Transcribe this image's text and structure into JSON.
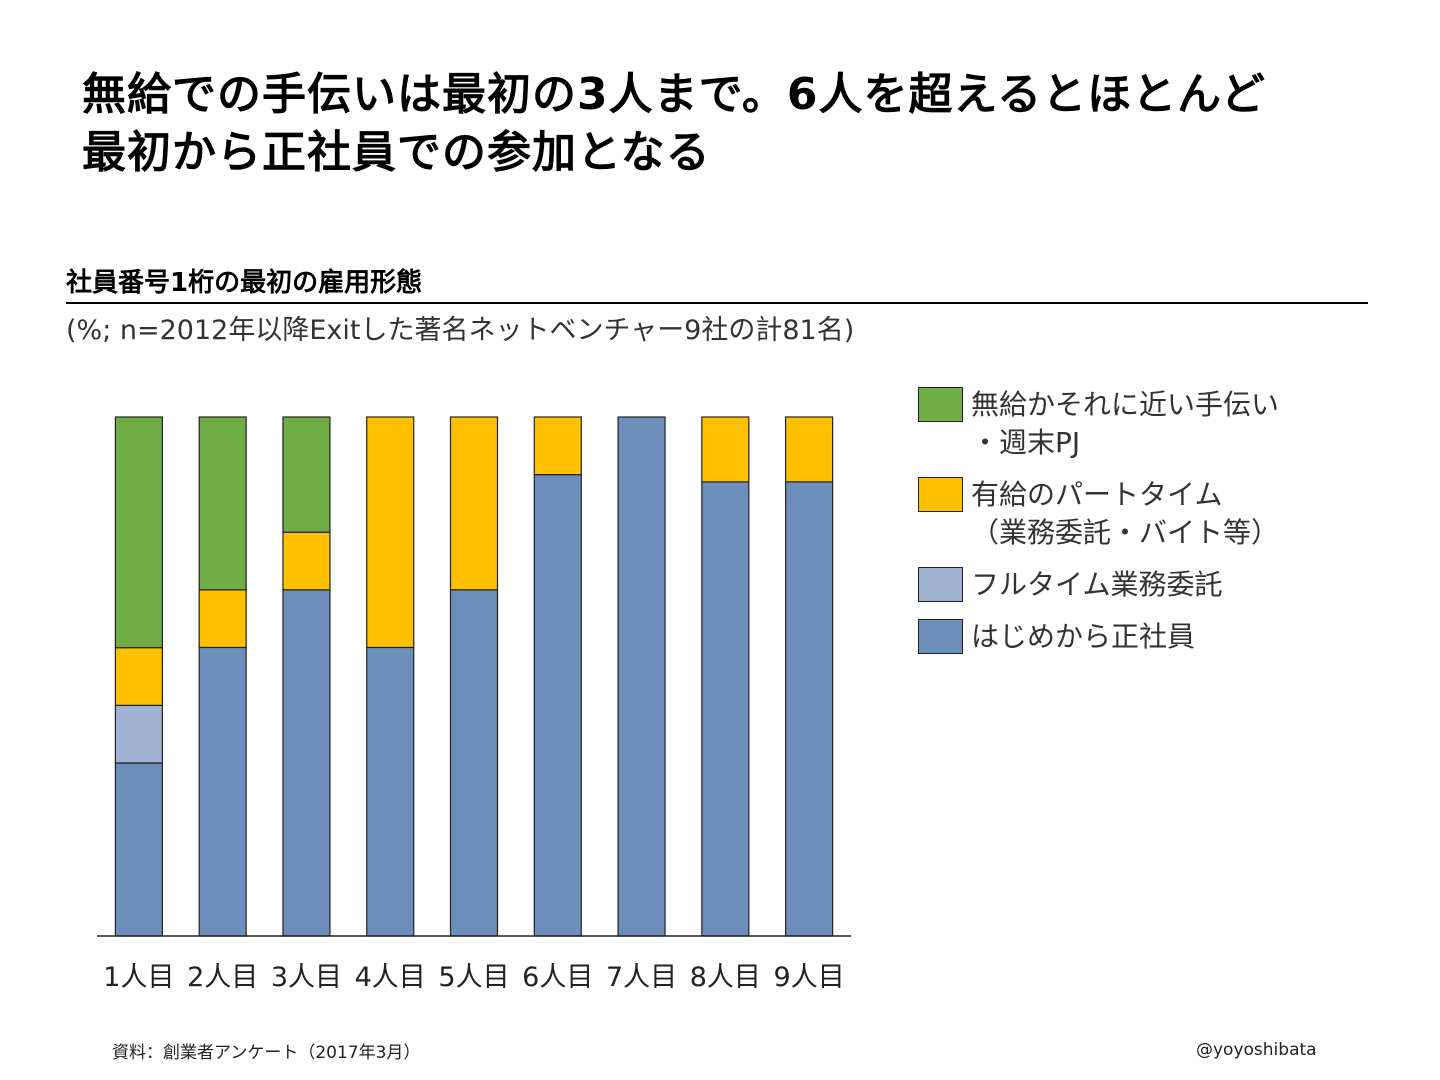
{
  "title_lines": [
    "無給での手伝いは最初の3人まで。6人を超えるとほとんど",
    "最初から正社員での参加となる"
  ],
  "subtitle": "社員番号1桁の最初の雇用形態",
  "note": "(%; n=2012年以降Exitした著名ネットベンチャー9社の計81名)",
  "source": "資料：創業者アンケート（2017年3月）",
  "handle": "@yoyoshibata",
  "chart_data": {
    "type": "bar",
    "stacked": true,
    "normalized_percent": true,
    "categories": [
      "1人目",
      "2人目",
      "3人目",
      "4人目",
      "5人目",
      "6人目",
      "7人目",
      "8人目",
      "9人目"
    ],
    "ylim": [
      0,
      100
    ],
    "grid": false,
    "legend_position": "right",
    "series": [
      {
        "name": "はじめから正社員",
        "color": "#6d8ebb",
        "values": [
          33.3,
          55.6,
          66.7,
          55.6,
          66.7,
          88.9,
          100,
          87.5,
          87.5
        ]
      },
      {
        "name": "フルタイム業務委託",
        "color": "#9fb2d2",
        "values": [
          11.1,
          0,
          0,
          0,
          0,
          0,
          0,
          0,
          0
        ]
      },
      {
        "name": "有給のパートタイム\n（業務委託・バイト等）",
        "color": "#ffc000",
        "values": [
          11.1,
          11.1,
          11.1,
          44.4,
          33.3,
          11.1,
          0,
          12.5,
          12.5
        ]
      },
      {
        "name": "無給かそれに近い手伝い\n・週末PJ",
        "color": "#70ad47",
        "values": [
          44.4,
          33.3,
          22.2,
          0,
          0,
          0,
          0,
          0,
          0
        ]
      }
    ],
    "legend_order": [
      3,
      2,
      1,
      0
    ]
  }
}
